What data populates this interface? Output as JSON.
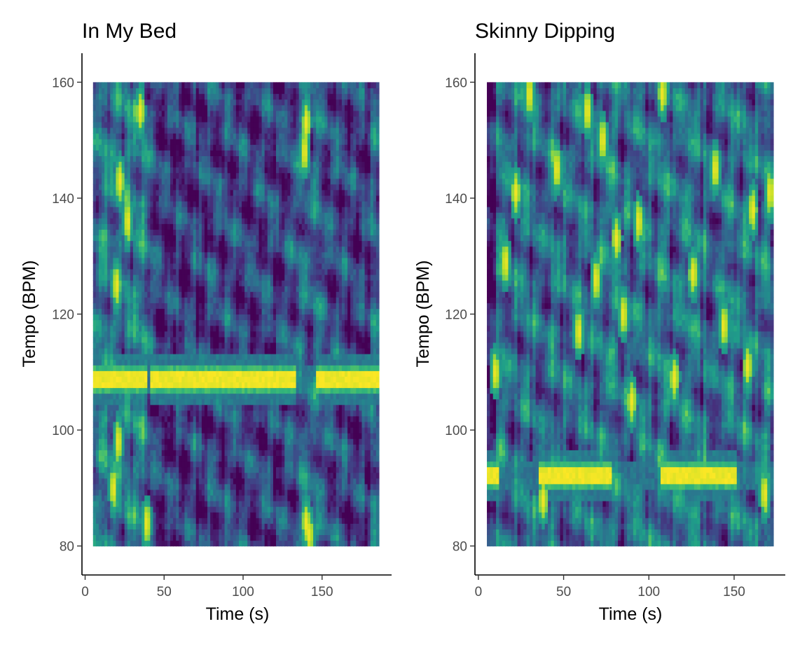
{
  "figure": {
    "panels_count": 2
  },
  "chart_data": [
    {
      "type": "heatmap",
      "title": "In My Bed",
      "xlabel": "Time (s)",
      "ylabel": "Tempo (BPM)",
      "xlim": [
        -2,
        194
      ],
      "ylim": [
        75,
        165
      ],
      "x_ticks": [
        0,
        50,
        100,
        150
      ],
      "y_ticks": [
        80,
        100,
        120,
        140,
        160
      ],
      "data_extent": {
        "x": [
          5,
          186
        ],
        "y": [
          80,
          160
        ]
      },
      "colormap": [
        "#440154",
        "#482878",
        "#3e4989",
        "#31688e",
        "#26828e",
        "#1f9e89",
        "#35b779",
        "#6ece58",
        "#b5de2b",
        "#fde725"
      ],
      "dominant_tempo_bpm": 109,
      "dominant_segments": [
        [
          5,
          40
        ],
        [
          42,
          133
        ],
        [
          146,
          186
        ]
      ],
      "yellow_spots": [
        {
          "t": 22,
          "bpm": 143
        },
        {
          "t": 27,
          "bpm": 136
        },
        {
          "t": 20,
          "bpm": 125
        },
        {
          "t": 35,
          "bpm": 155
        },
        {
          "t": 140,
          "bpm": 153
        },
        {
          "t": 139,
          "bpm": 148
        },
        {
          "t": 140,
          "bpm": 84
        },
        {
          "t": 142,
          "bpm": 82
        },
        {
          "t": 39,
          "bpm": 84
        },
        {
          "t": 21,
          "bpm": 98
        },
        {
          "t": 18,
          "bpm": 90
        }
      ],
      "legend": "none",
      "grid": false
    },
    {
      "type": "heatmap",
      "title": "Skinny Dipping",
      "xlabel": "Time (s)",
      "ylabel": "Tempo (BPM)",
      "xlim": [
        -2,
        180
      ],
      "ylim": [
        75,
        165
      ],
      "x_ticks": [
        0,
        50,
        100,
        150
      ],
      "y_ticks": [
        80,
        100,
        120,
        140,
        160
      ],
      "data_extent": {
        "x": [
          5,
          173
        ],
        "y": [
          80,
          160
        ]
      },
      "colormap": [
        "#440154",
        "#482878",
        "#3e4989",
        "#31688e",
        "#26828e",
        "#1f9e89",
        "#35b779",
        "#6ece58",
        "#b5de2b",
        "#fde725"
      ],
      "dominant_tempo_bpm": 92,
      "dominant_segments": [
        [
          5,
          12
        ],
        [
          35,
          78
        ],
        [
          107,
          152
        ]
      ],
      "yellow_spots": [
        {
          "t": 64,
          "bpm": 155
        },
        {
          "t": 30,
          "bpm": 158
        },
        {
          "t": 90,
          "bpm": 105
        },
        {
          "t": 69,
          "bpm": 126
        },
        {
          "t": 81,
          "bpm": 133
        },
        {
          "t": 161,
          "bpm": 138
        },
        {
          "t": 171,
          "bpm": 141
        },
        {
          "t": 22,
          "bpm": 141
        },
        {
          "t": 16,
          "bpm": 129
        },
        {
          "t": 46,
          "bpm": 145
        },
        {
          "t": 94,
          "bpm": 136
        },
        {
          "t": 108,
          "bpm": 158
        },
        {
          "t": 126,
          "bpm": 127
        },
        {
          "t": 144,
          "bpm": 118
        },
        {
          "t": 158,
          "bpm": 111
        },
        {
          "t": 85,
          "bpm": 120
        },
        {
          "t": 168,
          "bpm": 89
        },
        {
          "t": 115,
          "bpm": 109
        },
        {
          "t": 38,
          "bpm": 88
        },
        {
          "t": 59,
          "bpm": 117
        },
        {
          "t": 10,
          "bpm": 110
        },
        {
          "t": 139,
          "bpm": 145
        },
        {
          "t": 73,
          "bpm": 150
        }
      ],
      "legend": "none",
      "grid": false
    }
  ]
}
